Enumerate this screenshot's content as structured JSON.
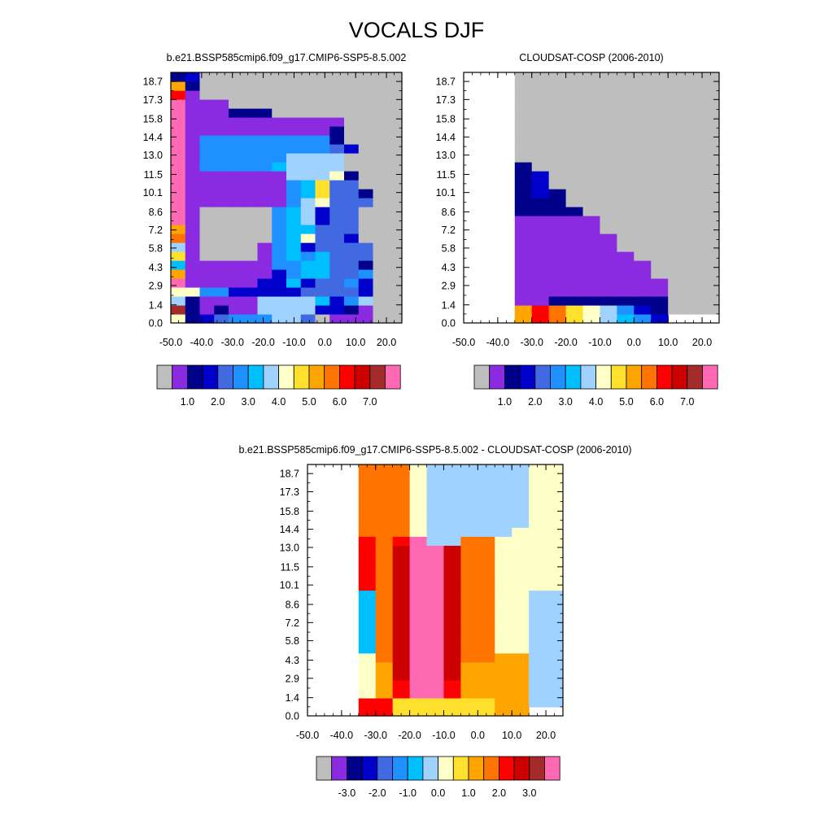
{
  "page": {
    "title": "VOCALS DJF"
  },
  "colors": {
    "missing": "#BEBEBE",
    "palette": [
      "#BEBEBE",
      "#8A2BE2",
      "#00008B",
      "#0000CD",
      "#4169E1",
      "#1E90FF",
      "#00BFFF",
      "#A0D2FF",
      "#FFFFC8",
      "#FFE12D",
      "#FFA500",
      "#FF7300",
      "#FF0000",
      "#CD0000",
      "#A52A2A",
      "#FF69B4"
    ]
  },
  "chart_data": [
    {
      "type": "heatmap",
      "title": "b.e21.BSSP585cmip6.f09_g17.CMIP6-SSP5-8.5.002",
      "x_tick_labels": [
        "-50.0",
        "-40.0",
        "-30.0",
        "-20.0",
        "-10.0",
        "0.0",
        "10.0",
        "20.0"
      ],
      "x_ticks": [
        -50,
        -40,
        -30,
        -20,
        -10,
        0,
        10,
        20
      ],
      "xlim": [
        -50,
        25
      ],
      "y_tick_labels": [
        "0.0",
        "1.4",
        "2.9",
        "4.3",
        "5.8",
        "7.2",
        "8.6",
        "10.1",
        "11.5",
        "13.0",
        "14.4",
        "15.8",
        "17.3",
        "18.7"
      ],
      "ylim": [
        0,
        19.4
      ],
      "colorbar": {
        "labels": [
          "1.0",
          "2.0",
          "3.0",
          "4.0",
          "5.0",
          "6.0",
          "7.0"
        ]
      },
      "grid": {
        "x_start": -50,
        "dx": 5,
        "n_levels": 28,
        "note": "columns at 5 deg cells; rows 0 = bottom level; values are palette indices (0 = missing)",
        "rows": [
          "8234555774011100",
          "5212117777332100",
          "5211117777635700",
          "5855333334444300",
          "1111113363445300",
          "1111111356644500",
          "1111111556644200",
          "1100001565644400",
          "1100001563444400",
          "1100000568443000",
          "1100000566444000",
          "1100000567344000",
          "1100000567344000",
          "1111111157844400",
          "1111111156944200",
          "1111111156944000",
          "1111111177782000",
          "1155555677770000",
          "1155555577770000",
          "1155555555543000",
          "1155555555520000",
          "1111111111120000",
          "1111111111110000",
          "1111222000000000",
          "1111000000000000",
          "1100000000000000",
          "1200000000000000",
          "1300000000000000"
        ],
        "first_col_override": [
          8,
          14,
          7,
          8,
          15,
          10,
          6,
          9,
          7,
          11,
          10,
          15,
          15,
          15,
          15,
          15,
          15,
          15,
          15,
          15,
          15,
          15,
          15,
          15,
          15,
          12,
          10,
          2
        ]
      }
    },
    {
      "type": "heatmap",
      "title": "CLOUDSAT-COSP (2006-2010)",
      "x_tick_labels": [
        "-50.0",
        "-40.0",
        "-30.0",
        "-20.0",
        "-10.0",
        "0.0",
        "10.0",
        "20.0"
      ],
      "x_ticks": [
        -50,
        -40,
        -30,
        -20,
        -10,
        0,
        10,
        20
      ],
      "xlim": [
        -50,
        25
      ],
      "y_tick_labels": [
        "0.0",
        "1.4",
        "2.9",
        "4.3",
        "5.8",
        "7.2",
        "8.6",
        "10.1",
        "11.5",
        "13.0",
        "14.4",
        "15.8",
        "17.3",
        "18.7"
      ],
      "ylim": [
        0,
        19.4
      ],
      "colorbar": {
        "labels": [
          "1.0",
          "2.0",
          "3.0",
          "4.0",
          "5.0",
          "6.0",
          "7.0"
        ]
      }
    },
    {
      "type": "heatmap",
      "title": "b.e21.BSSP585cmip6.f09_g17.CMIP6-SSP5-8.5.002 - CLOUDSAT-COSP (2006-2010)",
      "x_tick_labels": [
        "-50.0",
        "-40.0",
        "-30.0",
        "-20.0",
        "-10.0",
        "0.0",
        "10.0",
        "20.0"
      ],
      "x_ticks": [
        -50,
        -40,
        -30,
        -20,
        -10,
        0,
        10,
        20
      ],
      "xlim": [
        -50,
        25
      ],
      "y_tick_labels": [
        "0.0",
        "1.4",
        "2.9",
        "4.3",
        "5.8",
        "7.2",
        "8.6",
        "10.1",
        "11.5",
        "13.0",
        "14.4",
        "15.8",
        "17.3",
        "18.7"
      ],
      "ylim": [
        0,
        19.4
      ],
      "colorbar": {
        "labels": [
          "-3.0",
          "-2.0",
          "-1.0",
          "0.0",
          "1.0",
          "2.0",
          "3.0"
        ]
      }
    }
  ]
}
